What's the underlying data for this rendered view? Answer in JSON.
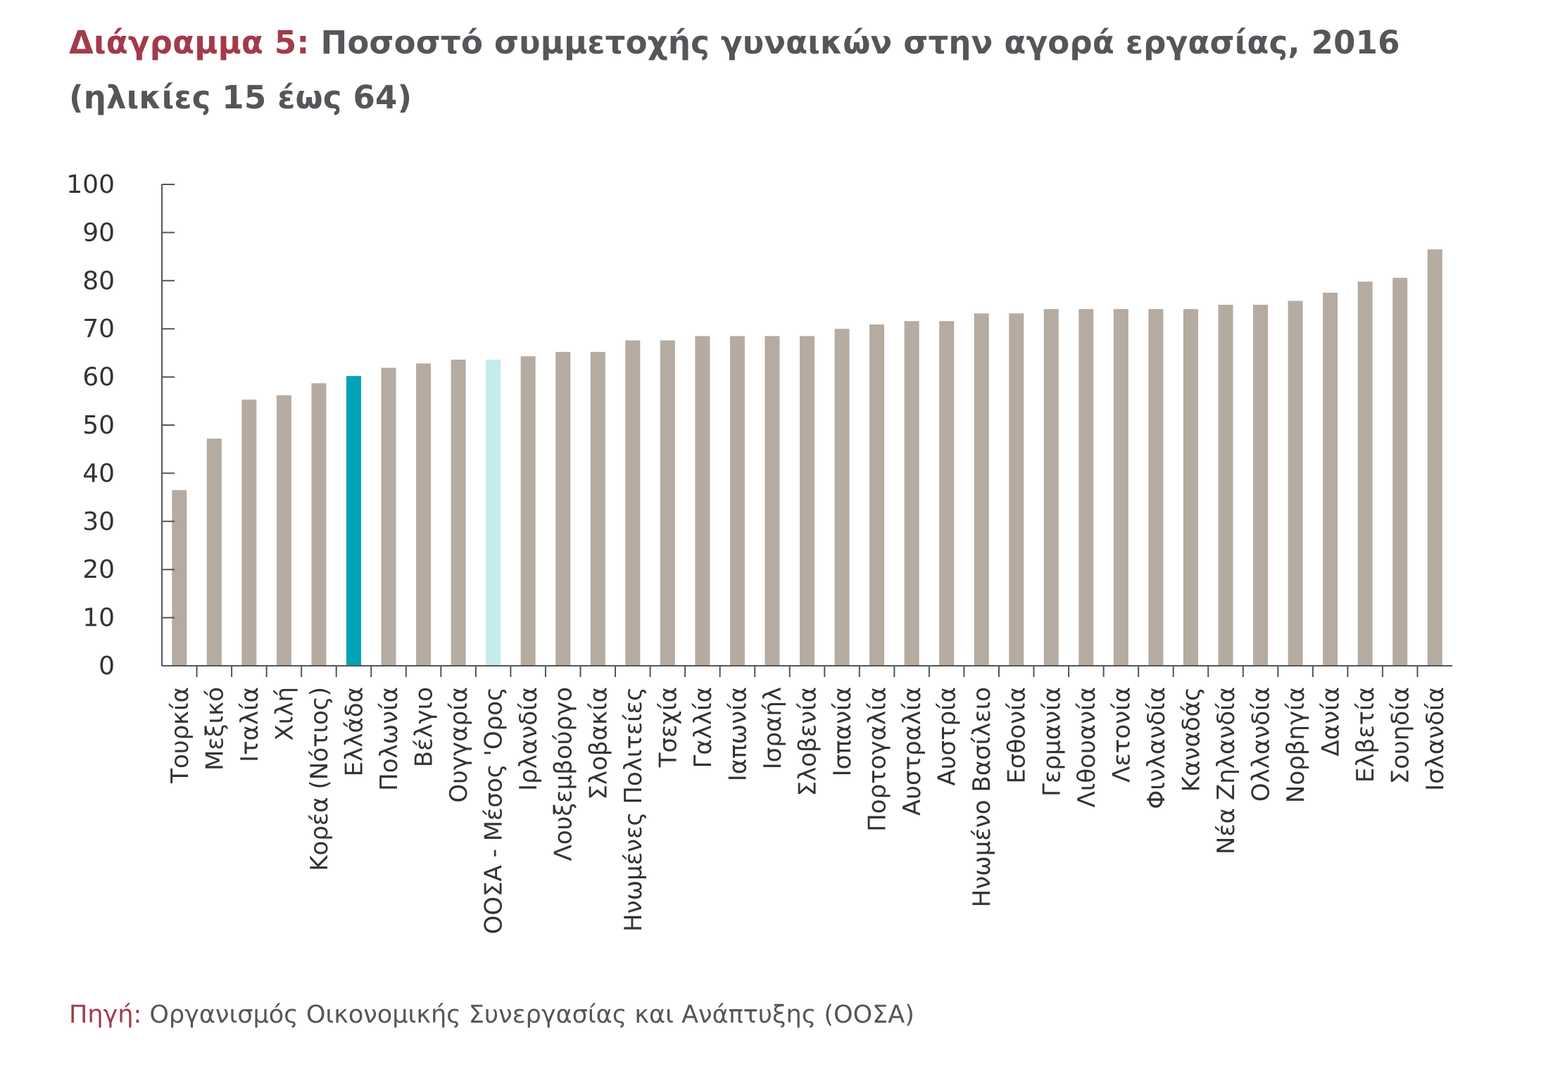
{
  "title": {
    "prefix": "Διάγραμμα 5:",
    "text": "Ποσοστό συμμετοχής γυναικών στην αγορά εργασίας, 2016 (ηλικίες 15 έως 64)"
  },
  "source": {
    "prefix": "Πηγή:",
    "text": "Οργανισμός Οικονομικής Συνεργασίας και Ανάπτυξης (ΟΟΣΑ)"
  },
  "colors": {
    "default_bar": "#b5aba1",
    "highlight_greece": "#00a3b5",
    "highlight_oecd": "#c5eced",
    "axis": "#555555",
    "title_accent": "#a23a4a"
  },
  "chart_data": {
    "type": "bar",
    "title": "Ποσοστό συμμετοχής γυναικών στην αγορά εργασίας, 2016 (ηλικίες 15 έως 64)",
    "xlabel": "",
    "ylabel": "",
    "ylim": [
      0,
      100
    ],
    "yticks": [
      0,
      10,
      20,
      30,
      40,
      50,
      60,
      70,
      80,
      90,
      100
    ],
    "grid": false,
    "legend": "none",
    "categories": [
      "Τουρκία",
      "Μεξικό",
      "Ιταλία",
      "Χιλή",
      "Κορέα (Νότιος)",
      "Ελλάδα",
      "Πολωνία",
      "Βέλγιο",
      "Ουγγαρία",
      "ΟΟΣΑ - Μέσος 'Ορος",
      "Ιρλανδία",
      "Λουξεμβούργο",
      "Σλοβακία",
      "Ηνωμένες Πολιτείες",
      "Τσεχία",
      "Γαλλία",
      "Ιαπωνία",
      "Ισραήλ",
      "Σλοβενία",
      "Ισπανία",
      "Πορτογαλία",
      "Αυστραλία",
      "Αυστρία",
      "Ηνωμένο Βασίλειο",
      "Εσθονία",
      "Γερμανία",
      "Λιθουανία",
      "Λετονία",
      "Φινλανδία",
      "Καναδάς",
      "Νέα Ζηλανδία",
      "Ολλανδία",
      "Νορβηγία",
      "Δανία",
      "Ελβετία",
      "Σουηδία",
      "Ισλανδία"
    ],
    "values": [
      36.5,
      47.2,
      55.3,
      56.2,
      58.7,
      60.2,
      61.9,
      62.8,
      63.6,
      63.6,
      64.3,
      65.2,
      65.2,
      67.6,
      67.6,
      68.5,
      68.5,
      68.5,
      68.5,
      70.0,
      70.9,
      71.6,
      71.6,
      73.2,
      73.2,
      74.1,
      74.1,
      74.1,
      74.1,
      74.1,
      75.0,
      75.0,
      75.8,
      77.5,
      79.8,
      80.6,
      86.5
    ],
    "highlights": {
      "Ελλάδα": "highlight_greece",
      "ΟΟΣΑ - Μέσος 'Ορος": "highlight_oecd"
    }
  }
}
